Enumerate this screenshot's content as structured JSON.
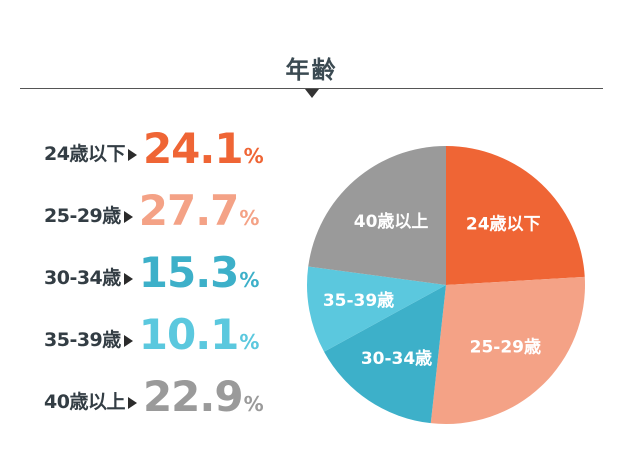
{
  "title": "年齢",
  "chart_data": {
    "type": "pie",
    "title": "年齢",
    "categories": [
      "24歳以下",
      "25-29歳",
      "30-34歳",
      "35-39歳",
      "40歳以上"
    ],
    "values": [
      24.1,
      27.7,
      15.3,
      10.1,
      22.9
    ],
    "unit": "%",
    "colors": [
      "#ef6535",
      "#f4a286",
      "#3db0c9",
      "#5bc8de",
      "#9a9a9a"
    ],
    "slice_order": "clockwise-from-top",
    "legend": "left"
  },
  "rows": [
    {
      "cat": "24歳以下",
      "num": "24.1",
      "pct": "%"
    },
    {
      "cat": "25-29歳",
      "num": "27.7",
      "pct": "%"
    },
    {
      "cat": "30-34歳",
      "num": "15.3",
      "pct": "%"
    },
    {
      "cat": "35-39歳",
      "num": "10.1",
      "pct": "%"
    },
    {
      "cat": "40歳以上",
      "num": "22.9",
      "pct": "%"
    }
  ]
}
